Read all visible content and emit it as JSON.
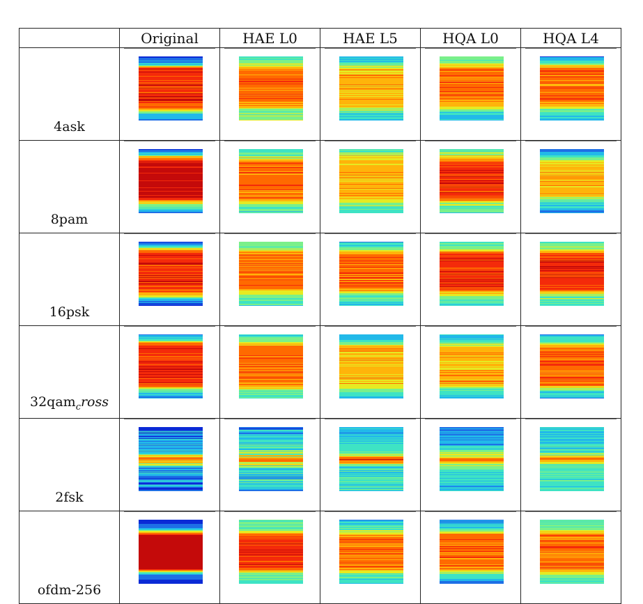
{
  "columns": [
    "Original",
    "HAE L0",
    "HAE L5",
    "HQA L0",
    "HQA L4"
  ],
  "rows": [
    {
      "label": "4ask",
      "label_sub": "",
      "label_after": ""
    },
    {
      "label": "8pam",
      "label_sub": "",
      "label_after": ""
    },
    {
      "label": "16psk",
      "label_sub": "",
      "label_after": ""
    },
    {
      "label": "32qam",
      "label_sub": "c",
      "label_after": "ross"
    },
    {
      "label": "2fsk",
      "label_sub": "",
      "label_after": ""
    },
    {
      "label": "ofdm-256",
      "label_sub": "",
      "label_after": ""
    }
  ],
  "colormap": [
    "#0a2ad6",
    "#1e6fe6",
    "#22b9e9",
    "#3ee3c4",
    "#7af08a",
    "#e6ea22",
    "#ffb40a",
    "#ff6a00",
    "#f42a0a",
    "#c40a0a"
  ],
  "spectra": [
    [
      {
        "p": [
          [
            0,
            0
          ],
          [
            0.04,
            1
          ],
          [
            0.12,
            2
          ],
          [
            0.18,
            8
          ],
          [
            0.7,
            8
          ],
          [
            0.8,
            7
          ],
          [
            0.86,
            4
          ],
          [
            0.92,
            2
          ],
          [
            1,
            1
          ]
        ],
        "stripe": 1
      },
      {
        "p": [
          [
            0,
            3
          ],
          [
            0.1,
            4
          ],
          [
            0.2,
            7
          ],
          [
            0.65,
            7
          ],
          [
            0.78,
            6
          ],
          [
            0.86,
            4
          ],
          [
            1,
            4
          ]
        ],
        "stripe": 1
      },
      {
        "p": [
          [
            0,
            2
          ],
          [
            0.1,
            3
          ],
          [
            0.2,
            6
          ],
          [
            0.7,
            6
          ],
          [
            0.8,
            5
          ],
          [
            0.88,
            3
          ],
          [
            1,
            2
          ]
        ],
        "stripe": 1
      },
      {
        "p": [
          [
            0,
            3
          ],
          [
            0.1,
            4
          ],
          [
            0.2,
            7
          ],
          [
            0.65,
            7
          ],
          [
            0.75,
            6
          ],
          [
            0.85,
            3
          ],
          [
            1,
            2
          ]
        ],
        "stripe": 1
      },
      {
        "p": [
          [
            0,
            1
          ],
          [
            0.08,
            3
          ],
          [
            0.2,
            7
          ],
          [
            0.7,
            7
          ],
          [
            0.82,
            4
          ],
          [
            0.9,
            3
          ],
          [
            1,
            2
          ]
        ],
        "stripe": 1
      }
    ],
    [
      {
        "p": [
          [
            0,
            1
          ],
          [
            0.06,
            2
          ],
          [
            0.14,
            7
          ],
          [
            0.22,
            9
          ],
          [
            0.75,
            9
          ],
          [
            0.82,
            6
          ],
          [
            0.9,
            3
          ],
          [
            1,
            1
          ]
        ],
        "stripe": 1
      },
      {
        "p": [
          [
            0,
            3
          ],
          [
            0.1,
            4
          ],
          [
            0.22,
            7
          ],
          [
            0.75,
            7
          ],
          [
            0.85,
            4
          ],
          [
            1,
            3
          ]
        ],
        "stripe": 1
      },
      {
        "p": [
          [
            0,
            3
          ],
          [
            0.1,
            5
          ],
          [
            0.25,
            6
          ],
          [
            0.72,
            6
          ],
          [
            0.85,
            4
          ],
          [
            1,
            3
          ]
        ],
        "stripe": 1
      },
      {
        "p": [
          [
            0,
            3
          ],
          [
            0.1,
            5
          ],
          [
            0.22,
            8
          ],
          [
            0.75,
            8
          ],
          [
            0.85,
            4
          ],
          [
            1,
            3
          ]
        ],
        "stripe": 1
      },
      {
        "p": [
          [
            0,
            1
          ],
          [
            0.1,
            3
          ],
          [
            0.22,
            6
          ],
          [
            0.7,
            6
          ],
          [
            0.82,
            3
          ],
          [
            1,
            1
          ]
        ],
        "stripe": 1
      }
    ],
    [
      {
        "p": [
          [
            0,
            0
          ],
          [
            0.06,
            2
          ],
          [
            0.14,
            7
          ],
          [
            0.2,
            8
          ],
          [
            0.72,
            8
          ],
          [
            0.82,
            6
          ],
          [
            0.9,
            2
          ],
          [
            1,
            0
          ]
        ],
        "stripe": 1
      },
      {
        "p": [
          [
            0,
            3
          ],
          [
            0.1,
            4
          ],
          [
            0.2,
            7
          ],
          [
            0.72,
            7
          ],
          [
            0.84,
            4
          ],
          [
            1,
            3
          ]
        ],
        "stripe": 1
      },
      {
        "p": [
          [
            0,
            2
          ],
          [
            0.1,
            4
          ],
          [
            0.2,
            7
          ],
          [
            0.72,
            7
          ],
          [
            0.84,
            4
          ],
          [
            1,
            2
          ]
        ],
        "stripe": 1
      },
      {
        "p": [
          [
            0,
            3
          ],
          [
            0.1,
            4
          ],
          [
            0.2,
            8
          ],
          [
            0.72,
            8
          ],
          [
            0.84,
            4
          ],
          [
            1,
            3
          ]
        ],
        "stripe": 1
      },
      {
        "p": [
          [
            0,
            3
          ],
          [
            0.1,
            4
          ],
          [
            0.2,
            8
          ],
          [
            0.72,
            8
          ],
          [
            0.84,
            4
          ],
          [
            1,
            3
          ]
        ],
        "stripe": 1
      }
    ],
    [
      {
        "p": [
          [
            0,
            1
          ],
          [
            0.08,
            3
          ],
          [
            0.14,
            7
          ],
          [
            0.2,
            8
          ],
          [
            0.78,
            8
          ],
          [
            0.84,
            5
          ],
          [
            0.92,
            2
          ],
          [
            1,
            1
          ]
        ],
        "stripe": 1
      },
      {
        "p": [
          [
            0,
            3
          ],
          [
            0.1,
            4
          ],
          [
            0.2,
            7
          ],
          [
            0.78,
            7
          ],
          [
            0.86,
            4
          ],
          [
            1,
            3
          ]
        ],
        "stripe": 1
      },
      {
        "p": [
          [
            0,
            2
          ],
          [
            0.1,
            3
          ],
          [
            0.2,
            6
          ],
          [
            0.75,
            6
          ],
          [
            0.86,
            4
          ],
          [
            1,
            2
          ]
        ],
        "stripe": 1
      },
      {
        "p": [
          [
            0,
            2
          ],
          [
            0.1,
            3
          ],
          [
            0.2,
            6
          ],
          [
            0.78,
            6
          ],
          [
            0.88,
            3
          ],
          [
            1,
            2
          ]
        ],
        "stripe": 1
      },
      {
        "p": [
          [
            0,
            2
          ],
          [
            0.1,
            3
          ],
          [
            0.2,
            7
          ],
          [
            0.78,
            7
          ],
          [
            0.88,
            3
          ],
          [
            1,
            2
          ]
        ],
        "stripe": 1
      }
    ],
    [
      {
        "p": [
          [
            0,
            1
          ],
          [
            0.38,
            2
          ],
          [
            0.44,
            5
          ],
          [
            0.5,
            7
          ],
          [
            0.56,
            5
          ],
          [
            0.62,
            2
          ],
          [
            1,
            1
          ]
        ],
        "stripe": 2
      },
      {
        "p": [
          [
            0,
            2
          ],
          [
            0.36,
            3
          ],
          [
            0.44,
            5
          ],
          [
            0.5,
            7
          ],
          [
            0.56,
            5
          ],
          [
            0.64,
            3
          ],
          [
            1,
            2
          ]
        ],
        "stripe": 2
      },
      {
        "p": [
          [
            0,
            2
          ],
          [
            0.38,
            3
          ],
          [
            0.46,
            6
          ],
          [
            0.5,
            8
          ],
          [
            0.54,
            6
          ],
          [
            0.62,
            3
          ],
          [
            1,
            3
          ]
        ],
        "stripe": 1
      },
      {
        "p": [
          [
            0,
            1
          ],
          [
            0.3,
            2
          ],
          [
            0.44,
            5
          ],
          [
            0.5,
            7
          ],
          [
            0.56,
            5
          ],
          [
            0.7,
            3
          ],
          [
            1,
            2
          ]
        ],
        "stripe": 1
      },
      {
        "p": [
          [
            0,
            2
          ],
          [
            0.38,
            3
          ],
          [
            0.46,
            6
          ],
          [
            0.5,
            7
          ],
          [
            0.54,
            5
          ],
          [
            0.62,
            3
          ],
          [
            1,
            3
          ]
        ],
        "stripe": 1
      }
    ],
    [
      {
        "p": [
          [
            0,
            0
          ],
          [
            0.12,
            1
          ],
          [
            0.18,
            5
          ],
          [
            0.24,
            9
          ],
          [
            0.76,
            9
          ],
          [
            0.8,
            5
          ],
          [
            0.86,
            1
          ],
          [
            1,
            0
          ]
        ],
        "stripe": 0
      },
      {
        "p": [
          [
            0,
            3
          ],
          [
            0.16,
            4
          ],
          [
            0.26,
            8
          ],
          [
            0.74,
            8
          ],
          [
            0.84,
            4
          ],
          [
            1,
            3
          ]
        ],
        "stripe": 1
      },
      {
        "p": [
          [
            0,
            2
          ],
          [
            0.16,
            4
          ],
          [
            0.26,
            7
          ],
          [
            0.74,
            7
          ],
          [
            0.84,
            4
          ],
          [
            1,
            2
          ]
        ],
        "stripe": 1
      },
      {
        "p": [
          [
            0,
            1
          ],
          [
            0.14,
            3
          ],
          [
            0.24,
            7
          ],
          [
            0.76,
            7
          ],
          [
            0.86,
            3
          ],
          [
            1,
            1
          ]
        ],
        "stripe": 1
      },
      {
        "p": [
          [
            0,
            3
          ],
          [
            0.14,
            4
          ],
          [
            0.24,
            7
          ],
          [
            0.76,
            7
          ],
          [
            0.86,
            4
          ],
          [
            1,
            3
          ]
        ],
        "stripe": 1
      }
    ]
  ]
}
